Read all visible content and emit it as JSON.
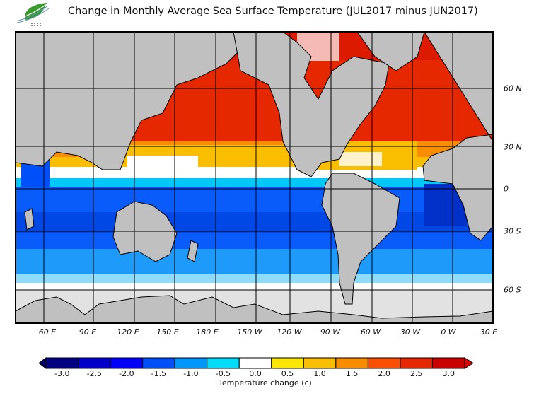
{
  "header": {
    "title": "Change in Monthly Average Sea Surface Temperature (JUL2017 minus JUN2017)",
    "logo_icon": "leaf-logo-icon"
  },
  "map": {
    "longitude_labels": [
      "60 E",
      "90 E",
      "120 E",
      "150 E",
      "180 E",
      "150 W",
      "120 W",
      "90 W",
      "60 W",
      "30 W",
      "0 W",
      "30 E"
    ],
    "latitude_labels": [
      "60 N",
      "30 N",
      "0",
      "30 S",
      "60 S"
    ],
    "colors": {
      "land": "#c0c0c0",
      "ice": "#e2e2e2",
      "coast": "#000000",
      "grid": "#000000"
    }
  },
  "colorbar": {
    "title": "Temperature change  (c)",
    "tick_labels": [
      "-3.0",
      "-2.5",
      "-2.0",
      "-1.5",
      "-1.0",
      "-0.5",
      "0.0",
      "0.5",
      "1.0",
      "1.5",
      "2.0",
      "2.5",
      "3.0"
    ],
    "colors": [
      "#000080",
      "#0000c8",
      "#0000fa",
      "#0050fa",
      "#0096fa",
      "#00dcfa",
      "#ffffff",
      "#fae600",
      "#fabe00",
      "#fa8c00",
      "#fa5000",
      "#e62800",
      "#c80000"
    ],
    "under_color": "#000064",
    "over_color": "#dc0000"
  }
}
